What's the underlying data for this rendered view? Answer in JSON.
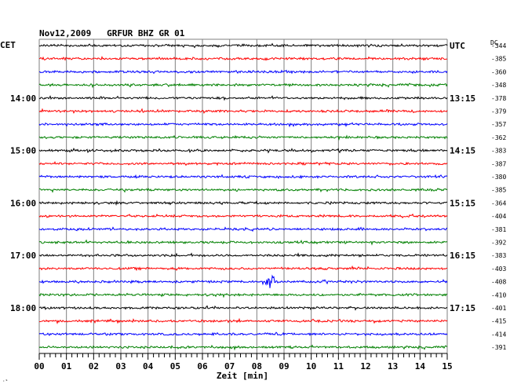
{
  "header": {
    "title": "Nov12,2009   GRFUR BHZ GR 01"
  },
  "labels": {
    "left_zone": "CET",
    "right_zone": "UTC",
    "dc": "DC",
    "xlabel": "Zeit [min]",
    "corner_mark": "·ˢ"
  },
  "colors": {
    "trace_cycle": [
      "#000000",
      "#ff0000",
      "#0000ff",
      "#008000"
    ],
    "grid": "#7f7f7f",
    "background": "#ffffff"
  },
  "chart_data": {
    "type": "line",
    "subtype": "helicorder",
    "title": "Nov12,2009   GRFUR BHZ GR 01",
    "xlabel": "Zeit [min]",
    "ylabel": "",
    "x_ticks": [
      "00",
      "01",
      "02",
      "03",
      "04",
      "05",
      "06",
      "07",
      "08",
      "09",
      "10",
      "11",
      "12",
      "13",
      "14",
      "15"
    ],
    "xlim": [
      0,
      15
    ],
    "traces_per_hour": 4,
    "minutes_per_trace": 15,
    "left_time_labels": [
      {
        "row": 4,
        "label": "14:00"
      },
      {
        "row": 8,
        "label": "15:00"
      },
      {
        "row": 12,
        "label": "16:00"
      },
      {
        "row": 16,
        "label": "17:00"
      },
      {
        "row": 20,
        "label": "18:00"
      }
    ],
    "right_time_labels": [
      {
        "row": 0,
        "label": "UTC"
      },
      {
        "row": 4,
        "label": "13:15"
      },
      {
        "row": 8,
        "label": "14:15"
      },
      {
        "row": 12,
        "label": "15:15"
      },
      {
        "row": 16,
        "label": "16:15"
      },
      {
        "row": 20,
        "label": "17:15"
      }
    ],
    "dc_offsets": [
      "-344",
      "-385",
      "-360",
      "-348",
      "-378",
      "-379",
      "-357",
      "-362",
      "-383",
      "-387",
      "-380",
      "-385",
      "-364",
      "-404",
      "-381",
      "-392",
      "-383",
      "-403",
      "-408",
      "-410",
      "-401",
      "-415",
      "-414",
      "-391"
    ],
    "event": {
      "row": 18,
      "minute": 8.5,
      "duration_min": 0.8,
      "peak_amplitude": 9
    }
  }
}
